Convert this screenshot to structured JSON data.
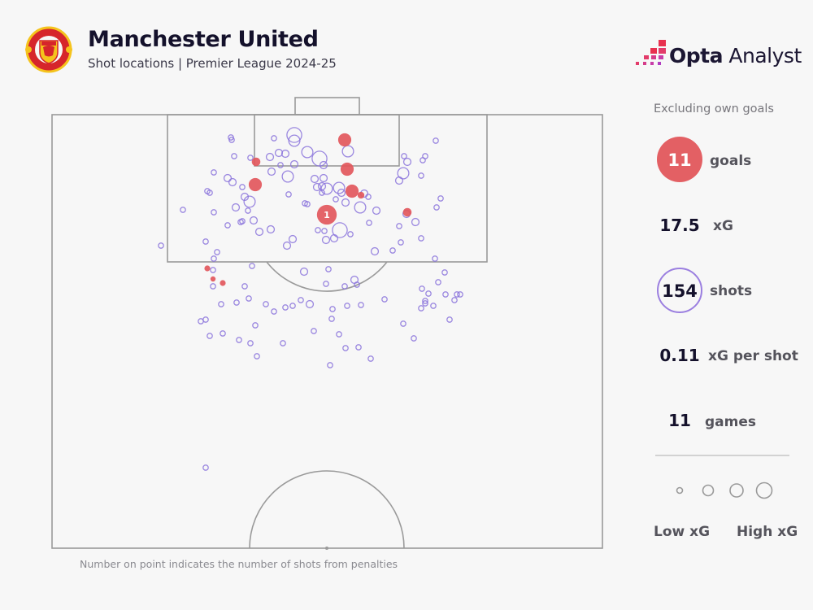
{
  "header": {
    "title": "Manchester United",
    "subtitle": "Shot locations | Premier League 2024-25",
    "crest_text": "MANCHESTER UNITED",
    "brand_bold": "Opta",
    "brand_light": " Analyst"
  },
  "stats": {
    "note": "Excluding own goals",
    "goals": {
      "value": "11",
      "label": "goals"
    },
    "xg": {
      "value": "17.5",
      "label": "xG"
    },
    "shots": {
      "value": "154",
      "label": "shots"
    },
    "xg_per_shot": {
      "value": "0.11",
      "label": "xG per shot"
    },
    "games": {
      "value": "11",
      "label": "games"
    }
  },
  "legend": {
    "low": "Low xG",
    "high": "High xG"
  },
  "footnote": "Number on point indicates the number of shots from penalties",
  "colors": {
    "goal": "#e2575c",
    "shot": "#8b74dc",
    "pitch_line": "#9a9a9a",
    "background": "#f7f7f7"
  },
  "chart_data": {
    "type": "scatter",
    "xlim": [
      0,
      67.7
    ],
    "ylim": [
      0,
      53.3
    ],
    "size_encodes": "xG",
    "goals": [
      {
        "x": 36.0,
        "y": 3.1,
        "xg": 0.3
      },
      {
        "x": 25.1,
        "y": 5.8,
        "xg": 0.1
      },
      {
        "x": 36.3,
        "y": 6.7,
        "xg": 0.3
      },
      {
        "x": 25.0,
        "y": 8.6,
        "xg": 0.3
      },
      {
        "x": 36.9,
        "y": 9.4,
        "xg": 0.3
      },
      {
        "x": 38.0,
        "y": 9.9,
        "xg": 0.05
      },
      {
        "x": 33.8,
        "y": 12.3,
        "xg": 0.79,
        "penalties": "1"
      },
      {
        "x": 43.7,
        "y": 12.0,
        "xg": 0.1
      },
      {
        "x": 19.1,
        "y": 18.9,
        "xg": 0.03
      },
      {
        "x": 19.8,
        "y": 20.2,
        "xg": 0.02
      },
      {
        "x": 21.0,
        "y": 20.7,
        "xg": 0.03
      }
    ],
    "shots": [
      [
        22.0,
        2.8,
        0.02
      ],
      [
        22.1,
        3.1,
        0.02
      ],
      [
        27.3,
        2.9,
        0.02
      ],
      [
        29.8,
        2.5,
        0.4
      ],
      [
        29.8,
        3.2,
        0.2
      ],
      [
        31.4,
        4.6,
        0.2
      ],
      [
        32.9,
        5.4,
        0.4
      ],
      [
        33.4,
        6.2,
        0.06
      ],
      [
        36.4,
        4.5,
        0.2
      ],
      [
        27.9,
        4.7,
        0.06
      ],
      [
        28.7,
        4.8,
        0.06
      ],
      [
        26.8,
        5.2,
        0.06
      ],
      [
        28.1,
        6.2,
        0.02
      ],
      [
        29.8,
        6.1,
        0.06
      ],
      [
        24.4,
        5.3,
        0.02
      ],
      [
        22.4,
        5.1,
        0.02
      ],
      [
        27.0,
        7.0,
        0.06
      ],
      [
        29.0,
        7.6,
        0.2
      ],
      [
        32.3,
        7.9,
        0.06
      ],
      [
        33.4,
        7.8,
        0.06
      ],
      [
        19.9,
        7.1,
        0.02
      ],
      [
        21.6,
        7.8,
        0.06
      ],
      [
        22.2,
        8.3,
        0.06
      ],
      [
        23.4,
        8.9,
        0.02
      ],
      [
        19.1,
        9.4,
        0.02
      ],
      [
        19.4,
        9.6,
        0.02
      ],
      [
        23.7,
        10.1,
        0.06
      ],
      [
        24.3,
        10.7,
        0.2
      ],
      [
        22.6,
        11.4,
        0.06
      ],
      [
        24.1,
        11.8,
        0.02
      ],
      [
        24.8,
        13.0,
        0.06
      ],
      [
        23.4,
        13.1,
        0.02
      ],
      [
        23.2,
        13.2,
        0.02
      ],
      [
        21.6,
        13.6,
        0.02
      ],
      [
        19.9,
        12.0,
        0.02
      ],
      [
        16.1,
        11.7,
        0.02
      ],
      [
        13.4,
        16.1,
        0.02
      ],
      [
        18.9,
        15.6,
        0.02
      ],
      [
        20.3,
        16.9,
        0.02
      ],
      [
        19.9,
        17.7,
        0.02
      ],
      [
        25.5,
        14.4,
        0.06
      ],
      [
        26.9,
        14.1,
        0.06
      ],
      [
        29.1,
        9.8,
        0.02
      ],
      [
        31.1,
        10.9,
        0.02
      ],
      [
        31.4,
        11.0,
        0.02
      ],
      [
        32.6,
        8.9,
        0.06
      ],
      [
        33.2,
        8.8,
        0.06
      ],
      [
        33.8,
        9.1,
        0.2
      ],
      [
        35.3,
        9.0,
        0.2
      ],
      [
        35.6,
        9.6,
        0.06
      ],
      [
        36.1,
        10.8,
        0.06
      ],
      [
        34.9,
        10.4,
        0.02
      ],
      [
        33.2,
        9.6,
        0.02
      ],
      [
        37.9,
        11.4,
        0.2
      ],
      [
        38.9,
        10.1,
        0.02
      ],
      [
        38.4,
        9.7,
        0.06
      ],
      [
        39.9,
        11.8,
        0.06
      ],
      [
        39.0,
        13.3,
        0.02
      ],
      [
        35.4,
        14.2,
        0.4
      ],
      [
        36.7,
        14.7,
        0.02
      ],
      [
        34.7,
        15.2,
        0.06
      ],
      [
        33.7,
        15.4,
        0.06
      ],
      [
        33.5,
        14.3,
        0.02
      ],
      [
        32.7,
        14.2,
        0.02
      ],
      [
        29.6,
        15.3,
        0.06
      ],
      [
        28.9,
        16.1,
        0.06
      ],
      [
        39.7,
        16.8,
        0.06
      ],
      [
        41.9,
        16.7,
        0.02
      ],
      [
        42.9,
        15.7,
        0.02
      ],
      [
        42.7,
        13.7,
        0.02
      ],
      [
        43.6,
        12.2,
        0.06
      ],
      [
        44.7,
        13.2,
        0.06
      ],
      [
        45.4,
        15.2,
        0.02
      ],
      [
        42.7,
        8.1,
        0.06
      ],
      [
        43.2,
        7.2,
        0.2
      ],
      [
        43.7,
        5.8,
        0.06
      ],
      [
        43.3,
        5.1,
        0.02
      ],
      [
        45.4,
        7.5,
        0.02
      ],
      [
        45.6,
        5.6,
        0.02
      ],
      [
        45.9,
        5.1,
        0.02
      ],
      [
        47.2,
        3.2,
        0.02
      ],
      [
        47.8,
        10.3,
        0.02
      ],
      [
        47.3,
        11.4,
        0.02
      ],
      [
        47.1,
        17.7,
        0.02
      ],
      [
        48.3,
        19.4,
        0.02
      ],
      [
        47.5,
        20.6,
        0.02
      ],
      [
        45.5,
        21.4,
        0.02
      ],
      [
        46.3,
        22.0,
        0.02
      ],
      [
        48.4,
        22.1,
        0.02
      ],
      [
        49.8,
        22.1,
        0.02
      ],
      [
        50.2,
        22.1,
        0.02
      ],
      [
        49.5,
        22.8,
        0.02
      ],
      [
        45.9,
        22.9,
        0.02
      ],
      [
        45.9,
        23.2,
        0.02
      ],
      [
        46.9,
        23.5,
        0.02
      ],
      [
        45.4,
        23.8,
        0.02
      ],
      [
        48.9,
        25.2,
        0.02
      ],
      [
        44.5,
        27.5,
        0.02
      ],
      [
        43.2,
        25.7,
        0.02
      ],
      [
        40.9,
        22.7,
        0.02
      ],
      [
        38.0,
        23.4,
        0.02
      ],
      [
        36.3,
        23.5,
        0.02
      ],
      [
        34.5,
        23.9,
        0.02
      ],
      [
        34.4,
        25.1,
        0.02
      ],
      [
        35.3,
        27.0,
        0.02
      ],
      [
        36.1,
        28.7,
        0.02
      ],
      [
        37.7,
        28.6,
        0.02
      ],
      [
        39.2,
        30.0,
        0.02
      ],
      [
        34.2,
        30.8,
        0.02
      ],
      [
        32.2,
        26.6,
        0.02
      ],
      [
        31.7,
        23.3,
        0.06
      ],
      [
        30.6,
        22.8,
        0.02
      ],
      [
        29.6,
        23.5,
        0.02
      ],
      [
        28.7,
        23.7,
        0.02
      ],
      [
        27.3,
        24.2,
        0.02
      ],
      [
        26.3,
        23.3,
        0.02
      ],
      [
        24.2,
        22.6,
        0.02
      ],
      [
        22.7,
        23.1,
        0.02
      ],
      [
        20.8,
        23.3,
        0.02
      ],
      [
        18.3,
        25.4,
        0.02
      ],
      [
        18.9,
        25.2,
        0.02
      ],
      [
        19.4,
        27.2,
        0.02
      ],
      [
        21.0,
        26.9,
        0.02
      ],
      [
        23.0,
        27.7,
        0.02
      ],
      [
        24.4,
        28.1,
        0.02
      ],
      [
        25.2,
        29.7,
        0.02
      ],
      [
        25.0,
        25.9,
        0.02
      ],
      [
        28.4,
        28.1,
        0.02
      ],
      [
        23.7,
        21.1,
        0.02
      ],
      [
        19.8,
        21.1,
        0.02
      ],
      [
        19.8,
        19.1,
        0.02
      ],
      [
        24.6,
        18.6,
        0.02
      ],
      [
        31.0,
        19.3,
        0.06
      ],
      [
        34.0,
        19.0,
        0.02
      ],
      [
        33.7,
        20.8,
        0.02
      ],
      [
        36.0,
        21.1,
        0.02
      ],
      [
        37.2,
        20.3,
        0.06
      ],
      [
        37.5,
        20.9,
        0.02
      ],
      [
        18.9,
        43.4,
        0.02
      ]
    ]
  }
}
